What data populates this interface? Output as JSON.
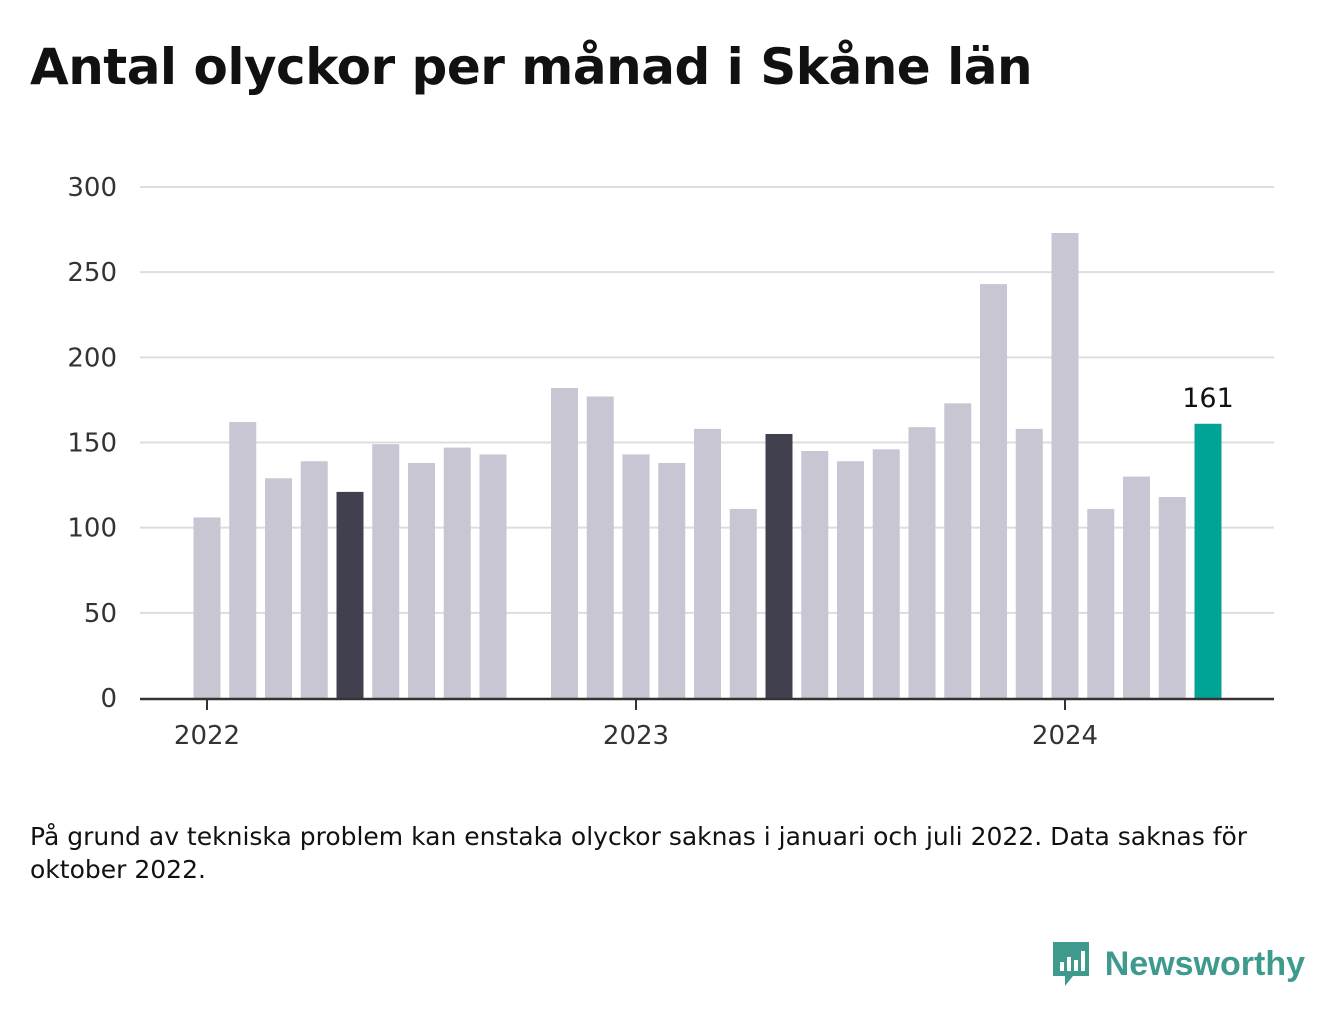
{
  "title": "Antal olyckor per månad i Skåne län",
  "note": "På grund av tekniska problem kan enstaka olyckor saknas i januari och juli 2022. Data saknas för oktober 2022.",
  "brand": "Newsworthy",
  "colors": {
    "default": "#c8c6d2",
    "highlight": "#41404e",
    "latest": "#00a496",
    "grid": "#dddddd",
    "axis": "#333333",
    "brand": "#3f9a8e"
  },
  "chart_data": {
    "type": "bar",
    "title": "Antal olyckor per månad i Skåne län",
    "xlabel": "",
    "ylabel": "",
    "ylim": [
      0,
      300
    ],
    "yticks": [
      0,
      50,
      100,
      150,
      200,
      250,
      300
    ],
    "xtick_labels": [
      {
        "label": "2022",
        "month": "2022-01"
      },
      {
        "label": "2023",
        "month": "2023-01"
      },
      {
        "label": "2024",
        "month": "2024-01"
      }
    ],
    "grid": true,
    "months": [
      "2022-01",
      "2022-02",
      "2022-03",
      "2022-04",
      "2022-05",
      "2022-06",
      "2022-07",
      "2022-08",
      "2022-09",
      "2022-10",
      "2022-11",
      "2022-12",
      "2023-01",
      "2023-02",
      "2023-03",
      "2023-04",
      "2023-05",
      "2023-06",
      "2023-07",
      "2023-08",
      "2023-09",
      "2023-10",
      "2023-11",
      "2023-12",
      "2024-01",
      "2024-02",
      "2024-03",
      "2024-04",
      "2024-05"
    ],
    "values": [
      106,
      162,
      129,
      139,
      121,
      149,
      138,
      147,
      143,
      null,
      182,
      177,
      143,
      138,
      158,
      111,
      155,
      145,
      139,
      146,
      159,
      173,
      243,
      158,
      273,
      111,
      130,
      118,
      161
    ],
    "highlighted_months": [
      "2022-05",
      "2023-05"
    ],
    "latest_month": "2024-05",
    "data_labels": [
      {
        "month": "2024-05",
        "text": "161"
      }
    ]
  }
}
